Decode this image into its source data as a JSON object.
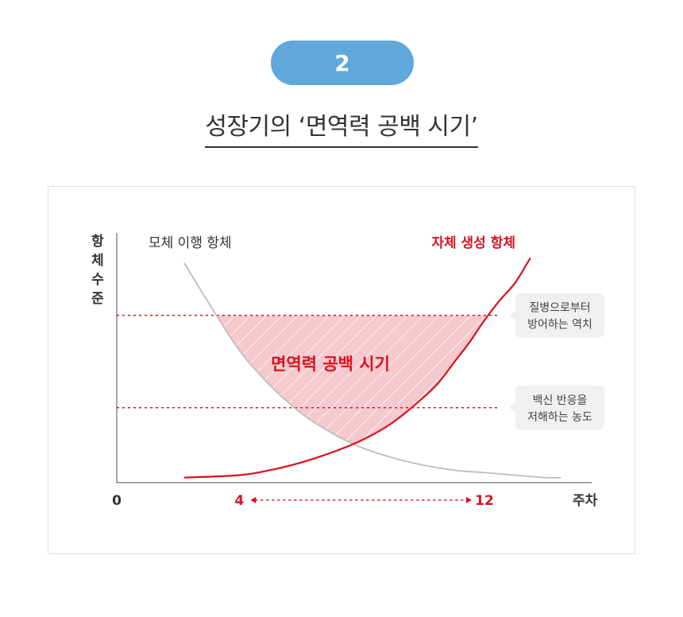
{
  "header": {
    "step_number": "2",
    "title": "성장기의 ‘면역력 공백 시기’"
  },
  "colors": {
    "pill": "#5fa8dc",
    "accent_red": "#d9121f",
    "gray_curve": "#bdbdbd",
    "gap_fill": "#f6c9ce"
  },
  "chart_data": {
    "type": "line",
    "ylabel": "항체 수준",
    "xlabel": "주차",
    "origin_label": "0",
    "x_ticks": [
      {
        "label": "4",
        "value": 4,
        "highlight": true
      },
      {
        "label": "12",
        "value": 12,
        "highlight": true
      }
    ],
    "xlim": [
      0,
      15.5
    ],
    "ylim": [
      0,
      1
    ],
    "series": [
      {
        "name": "모체 이행 항체",
        "color": "#bdbdbd",
        "x": [
          2.2,
          3,
          4,
          5,
          6,
          7,
          8,
          9,
          10,
          11,
          12,
          13,
          14,
          14.5
        ],
        "y": [
          0.88,
          0.72,
          0.53,
          0.39,
          0.28,
          0.2,
          0.14,
          0.1,
          0.07,
          0.05,
          0.04,
          0.03,
          0.02,
          0.02
        ]
      },
      {
        "name": "자체 생성 항체",
        "color": "#d9121f",
        "x": [
          2.2,
          4,
          5,
          6,
          7,
          8,
          9,
          10,
          10.5,
          11,
          11.5,
          12,
          12.5,
          13,
          13.5
        ],
        "y": [
          0.02,
          0.03,
          0.05,
          0.08,
          0.12,
          0.17,
          0.24,
          0.34,
          0.4,
          0.48,
          0.56,
          0.65,
          0.73,
          0.8,
          0.9
        ]
      }
    ],
    "reference_lines": [
      {
        "y": 0.67,
        "label": [
          "질병으로부터",
          "방어하는 역치"
        ]
      },
      {
        "y": 0.3,
        "label": [
          "백신 반응을",
          "저해하는 농도"
        ]
      }
    ],
    "region_label": "면역력 공백 시기",
    "range_arrow": {
      "from": 4,
      "to": 12
    },
    "grid": false,
    "legend": "direct labels"
  }
}
